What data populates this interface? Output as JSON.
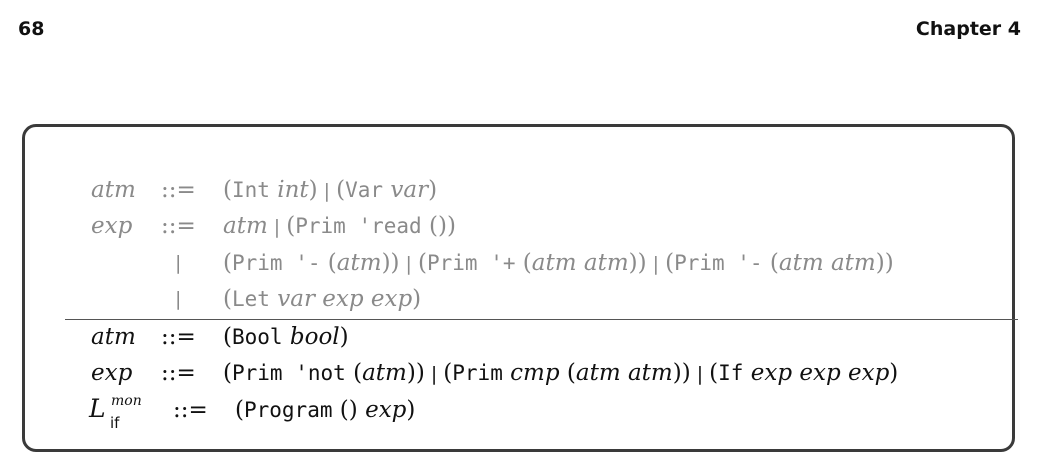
{
  "header": {
    "page_number": "68",
    "chapter": "Chapter 4"
  },
  "grammar": {
    "gray_rows": [
      {
        "lhs": "atm",
        "op": "::=",
        "parts": [
          {
            "t": "(",
            "s": "ser"
          },
          {
            "t": "Int",
            "s": "mono"
          },
          {
            "t": " ",
            "s": "ser"
          },
          {
            "t": "int",
            "s": "it"
          },
          {
            "t": ")",
            "s": "ser"
          },
          {
            "t": " | ",
            "s": "bar"
          },
          {
            "t": "(",
            "s": "ser"
          },
          {
            "t": "Var",
            "s": "mono"
          },
          {
            "t": " ",
            "s": "ser"
          },
          {
            "t": "var",
            "s": "it"
          },
          {
            "t": ")",
            "s": "ser"
          }
        ]
      },
      {
        "lhs": "exp",
        "op": "::=",
        "parts": [
          {
            "t": "atm",
            "s": "it"
          },
          {
            "t": " | ",
            "s": "bar"
          },
          {
            "t": "(",
            "s": "ser"
          },
          {
            "t": "Prim 'read",
            "s": "mono"
          },
          {
            "t": " ()",
            "s": "ser"
          },
          {
            "t": ")",
            "s": "ser"
          }
        ]
      },
      {
        "lhs": "",
        "op": "|",
        "parts": [
          {
            "t": "(",
            "s": "ser"
          },
          {
            "t": "Prim '-",
            "s": "mono"
          },
          {
            "t": " (",
            "s": "ser"
          },
          {
            "t": "atm",
            "s": "it"
          },
          {
            "t": "))",
            "s": "ser"
          },
          {
            "t": " | ",
            "s": "bar"
          },
          {
            "t": "(",
            "s": "ser"
          },
          {
            "t": "Prim '+",
            "s": "mono"
          },
          {
            "t": " (",
            "s": "ser"
          },
          {
            "t": "atm atm",
            "s": "it"
          },
          {
            "t": "))",
            "s": "ser"
          },
          {
            "t": " | ",
            "s": "bar"
          },
          {
            "t": "(",
            "s": "ser"
          },
          {
            "t": "Prim '-",
            "s": "mono"
          },
          {
            "t": " (",
            "s": "ser"
          },
          {
            "t": "atm atm",
            "s": "it"
          },
          {
            "t": "))",
            "s": "ser"
          }
        ]
      },
      {
        "lhs": "",
        "op": "|",
        "parts": [
          {
            "t": "(",
            "s": "ser"
          },
          {
            "t": "Let",
            "s": "mono"
          },
          {
            "t": " ",
            "s": "ser"
          },
          {
            "t": "var exp exp",
            "s": "it"
          },
          {
            "t": ")",
            "s": "ser"
          }
        ]
      }
    ],
    "black_rows": [
      {
        "lhs": "atm",
        "op": "::=",
        "parts": [
          {
            "t": "(",
            "s": "ser"
          },
          {
            "t": "Bool",
            "s": "mono"
          },
          {
            "t": " ",
            "s": "ser"
          },
          {
            "t": "bool",
            "s": "it"
          },
          {
            "t": ")",
            "s": "ser"
          }
        ]
      },
      {
        "lhs": "exp",
        "op": "::=",
        "parts": [
          {
            "t": "(",
            "s": "ser"
          },
          {
            "t": "Prim 'not",
            "s": "mono"
          },
          {
            "t": " (",
            "s": "ser"
          },
          {
            "t": "atm",
            "s": "it"
          },
          {
            "t": "))",
            "s": "ser"
          },
          {
            "t": " | ",
            "s": "bar"
          },
          {
            "t": "(",
            "s": "ser"
          },
          {
            "t": "Prim",
            "s": "mono"
          },
          {
            "t": " ",
            "s": "ser"
          },
          {
            "t": "cmp",
            "s": "it"
          },
          {
            "t": " (",
            "s": "ser"
          },
          {
            "t": "atm atm",
            "s": "it"
          },
          {
            "t": "))",
            "s": "ser"
          },
          {
            "t": " | ",
            "s": "bar"
          },
          {
            "t": "(",
            "s": "ser"
          },
          {
            "t": "If",
            "s": "mono"
          },
          {
            "t": " ",
            "s": "ser"
          },
          {
            "t": "exp exp exp",
            "s": "it"
          },
          {
            "t": ")",
            "s": "ser"
          }
        ]
      }
    ],
    "program_row": {
      "lhs_symbol": "L",
      "lhs_sup": "mon",
      "lhs_sub": "if",
      "op": "::=",
      "parts": [
        {
          "t": "(",
          "s": "ser"
        },
        {
          "t": "Program",
          "s": "mono"
        },
        {
          "t": " () ",
          "s": "ser"
        },
        {
          "t": "exp",
          "s": "it"
        },
        {
          "t": ")",
          "s": "ser"
        }
      ]
    }
  }
}
